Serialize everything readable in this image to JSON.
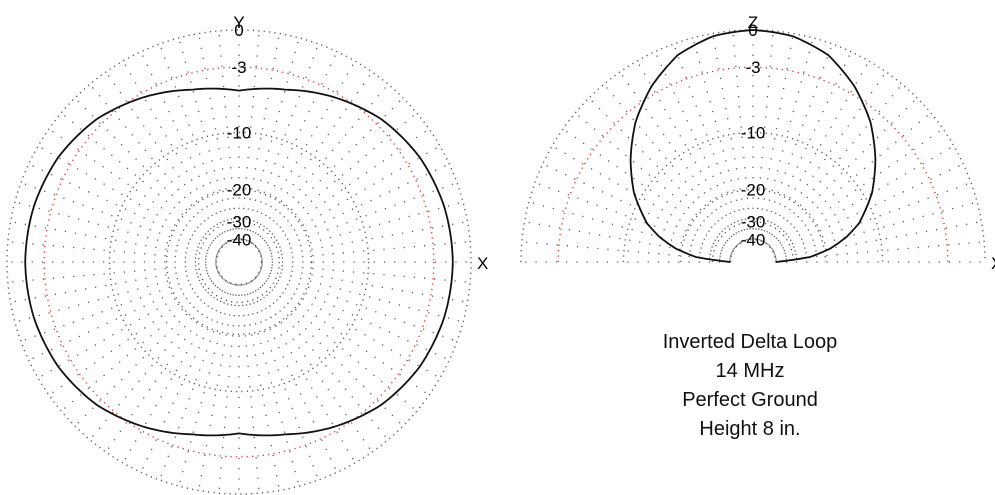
{
  "chart_data": [
    {
      "type": "polar",
      "title": "",
      "plane": "azimuth",
      "axes": {
        "horizontal": "X",
        "vertical": "Y"
      },
      "ring_labels": [
        "0",
        "-3",
        "-10",
        "-20",
        "-30",
        "-40"
      ],
      "ring_levels_db": [
        0,
        -3,
        -10,
        -20,
        -30,
        -40
      ],
      "highlight_ring_db": -3,
      "highlight_color": "#e03030",
      "grid": true,
      "radial_spokes_deg": 5,
      "pattern": {
        "angle_deg": [
          0,
          15,
          30,
          45,
          60,
          75,
          90,
          105,
          120,
          135,
          150,
          165,
          180,
          195,
          210,
          225,
          240,
          255,
          270,
          285,
          300,
          315,
          330,
          345,
          360
        ],
        "gain_db": [
          -1.4,
          -1.5,
          -1.8,
          -2.4,
          -3.4,
          -4.5,
          -5.2,
          -4.5,
          -3.4,
          -2.4,
          -1.8,
          -1.5,
          -1.4,
          -1.5,
          -1.8,
          -2.4,
          -3.4,
          -4.5,
          -5.2,
          -4.5,
          -3.4,
          -2.4,
          -1.8,
          -1.5,
          -1.4
        ]
      }
    },
    {
      "type": "polar",
      "title": "",
      "plane": "elevation",
      "axes": {
        "horizontal": "X",
        "vertical": "Z"
      },
      "ring_labels": [
        "0",
        "-3",
        "-10",
        "-20",
        "-30",
        "-40"
      ],
      "ring_levels_db": [
        0,
        -3,
        -10,
        -20,
        -30,
        -40
      ],
      "highlight_ring_db": -3,
      "highlight_color": "#e03030",
      "grid": true,
      "radial_spokes_deg": 5,
      "pattern": {
        "elevation_deg": [
          0,
          5,
          10,
          15,
          20,
          30,
          40,
          50,
          60,
          70,
          80,
          90,
          100,
          110,
          120,
          130,
          140,
          150,
          160,
          165,
          170,
          175,
          180
        ],
        "gain_db": [
          -40,
          -24,
          -18.5,
          -15,
          -12.4,
          -9.0,
          -6.4,
          -4.1,
          -2.3,
          -0.9,
          -0.2,
          0,
          -0.2,
          -0.9,
          -2.3,
          -4.1,
          -6.4,
          -9.0,
          -12.4,
          -15,
          -18.5,
          -24,
          -40
        ]
      }
    }
  ],
  "caption": {
    "line1": "Inverted Delta Loop",
    "line2": "14 MHz",
    "line3": "Perfect Ground",
    "line4": "Height 8 in."
  }
}
